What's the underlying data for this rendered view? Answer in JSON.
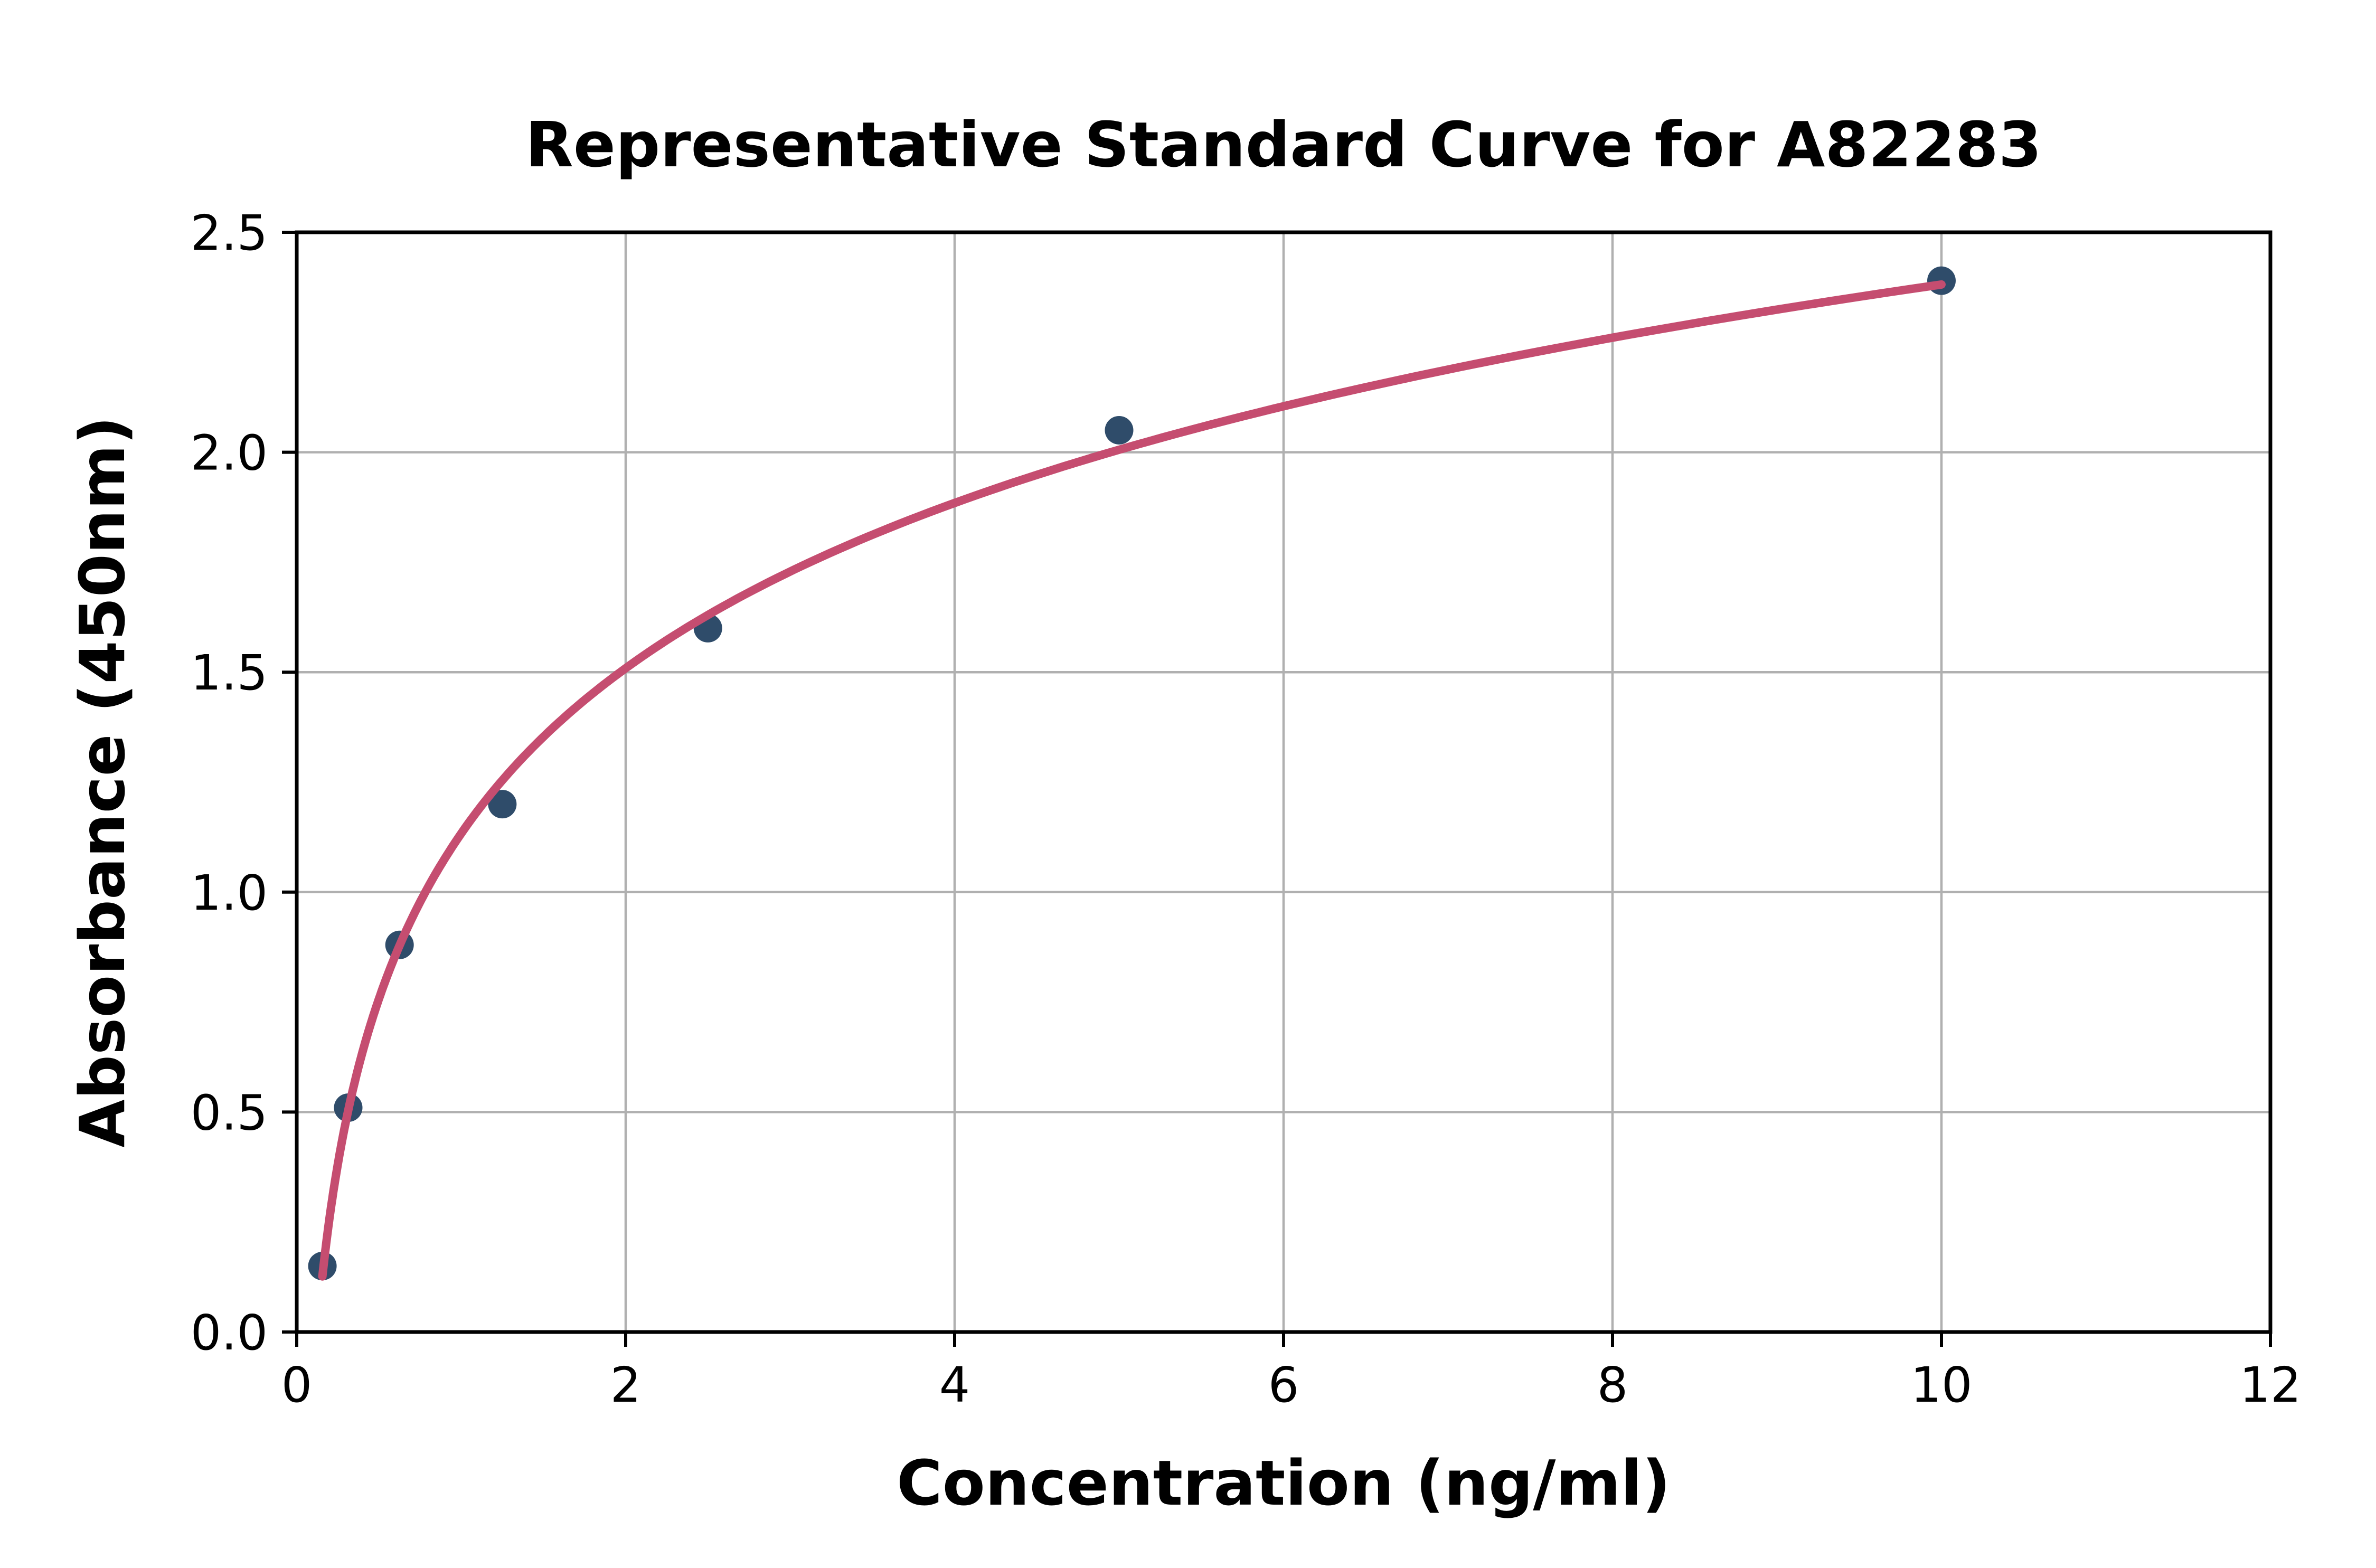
{
  "chart_data": {
    "type": "scatter",
    "title": "Representative Standard Curve for A82283",
    "xlabel": "Concentration (ng/ml)",
    "ylabel": "Absorbance (450nm)",
    "x": [
      0.156,
      0.313,
      0.625,
      1.25,
      2.5,
      5,
      10
    ],
    "y": [
      0.15,
      0.51,
      0.88,
      1.2,
      1.6,
      2.05,
      2.39
    ],
    "fit": "logarithmic",
    "xlim": [
      0,
      12
    ],
    "ylim": [
      0,
      2.5
    ],
    "xticks": [
      0,
      2,
      4,
      6,
      8,
      10,
      12
    ],
    "ytick_labels": [
      "0.0",
      "0.5",
      "1.0",
      "1.5",
      "2.0",
      "2.5"
    ],
    "yticks": [
      0,
      0.5,
      1,
      1.5,
      2,
      2.5
    ],
    "grid": true,
    "legend": "none",
    "colors": {
      "curve": "#c54d70",
      "points": "#2f4c6a",
      "grid": "#b0b0b0",
      "axis": "#000000",
      "background": "#ffffff"
    }
  }
}
